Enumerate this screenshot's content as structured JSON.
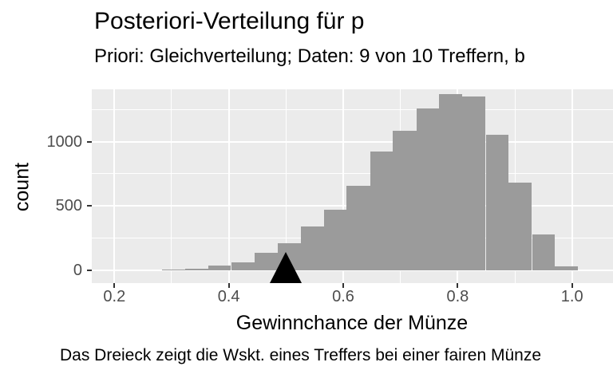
{
  "title": "Posteriori-Verteilung für p",
  "subtitle": "Priori: Gleichverteilung; Daten: 9 von 10 Treffern, b",
  "caption": "Das Dreieck zeigt die Wskt. eines Treffers bei einer fairen Münze",
  "chart_data": {
    "type": "bar",
    "subtype": "histogram",
    "title": "Posteriori-Verteilung für p",
    "subtitle": "Priori: Gleichverteilung; Daten: 9 von 10 Treffern, b",
    "caption": "Das Dreieck zeigt die Wskt. eines Treffers bei einer fairen Münze",
    "xlabel": "Gewinnchance der Münze",
    "ylabel": "count",
    "xlim": [
      0.16,
      1.07
    ],
    "ylim": [
      0,
      1400
    ],
    "grid": "on",
    "legend": "none",
    "bin_edges": [
      0.283,
      0.324,
      0.364,
      0.404,
      0.445,
      0.485,
      0.526,
      0.566,
      0.606,
      0.647,
      0.687,
      0.728,
      0.768,
      0.808,
      0.849,
      0.889,
      0.93,
      0.97,
      1.01
    ],
    "counts": [
      6,
      15,
      36,
      60,
      138,
      210,
      340,
      470,
      655,
      920,
      1085,
      1255,
      1370,
      1350,
      1050,
      680,
      277,
      29
    ],
    "x_ticks": [
      0.2,
      0.4,
      0.6,
      0.8,
      1.0
    ],
    "x_tick_labels": [
      "0.2",
      "0.4",
      "0.6",
      "0.8",
      "1.0"
    ],
    "x_minor_gridlines": [
      0.3,
      0.5,
      0.7,
      0.9
    ],
    "y_ticks": [
      0,
      500,
      1000
    ],
    "y_tick_labels": [
      "0",
      "500",
      "1000"
    ],
    "y_minor_gridlines": [
      250,
      750,
      1250
    ],
    "marker": {
      "shape": "triangle-up",
      "x": 0.5,
      "y": 0,
      "color": "#000000"
    }
  },
  "colors": {
    "panel_background": "#EBEBEB",
    "gridline": "#FFFFFF",
    "bar_fill": "#9B9B9B",
    "marker": "#000000",
    "tick_mark": "#333333",
    "tick_label": "#4D4D4D",
    "text": "#000000"
  }
}
